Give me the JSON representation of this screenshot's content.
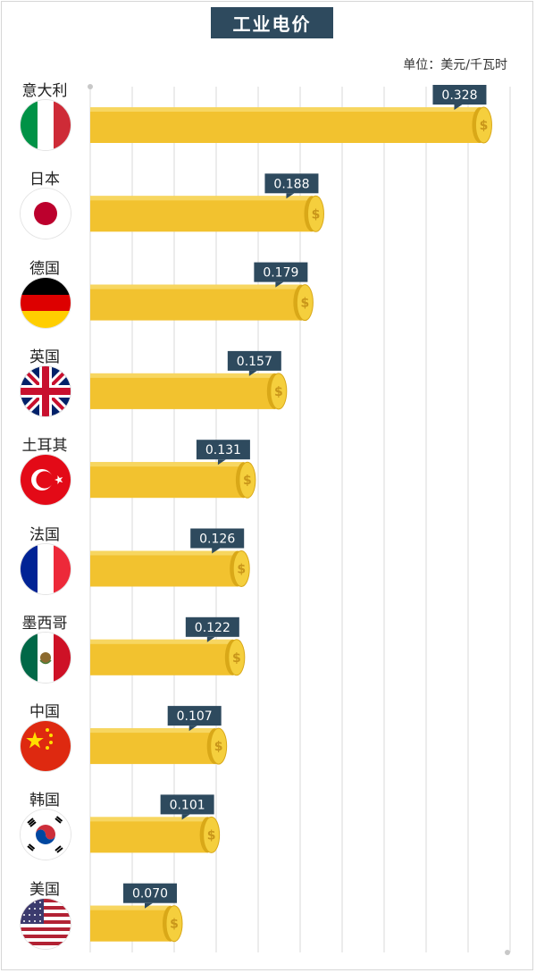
{
  "title": "工业电价",
  "unit_label": "单位：美元/千瓦时",
  "colors": {
    "bar": "#f2c22f",
    "bar_dark": "#d9a818",
    "coin": "#f5cf3d",
    "label_bg": "#2e4a5e",
    "label_text": "#ffffff",
    "grid": "#d9d9d9"
  },
  "chart_data": {
    "type": "bar",
    "orientation": "horizontal",
    "title": "工业电价",
    "unit": "美元/千瓦时",
    "xlim": [
      0,
      0.35
    ],
    "categories": [
      "意大利",
      "日本",
      "德国",
      "英国",
      "土耳其",
      "法国",
      "墨西哥",
      "中国",
      "韩国",
      "美国"
    ],
    "values": [
      0.328,
      0.188,
      0.179,
      0.157,
      0.131,
      0.126,
      0.122,
      0.107,
      0.101,
      0.07
    ],
    "value_labels": [
      "0.328",
      "0.188",
      "0.179",
      "0.157",
      "0.131",
      "0.126",
      "0.122",
      "0.107",
      "0.101",
      "0.070"
    ],
    "flags": [
      "italy-flag",
      "japan-flag",
      "germany-flag",
      "uk-flag",
      "turkey-flag",
      "france-flag",
      "mexico-flag",
      "china-flag",
      "korea-flag",
      "usa-flag"
    ],
    "grid": true
  }
}
